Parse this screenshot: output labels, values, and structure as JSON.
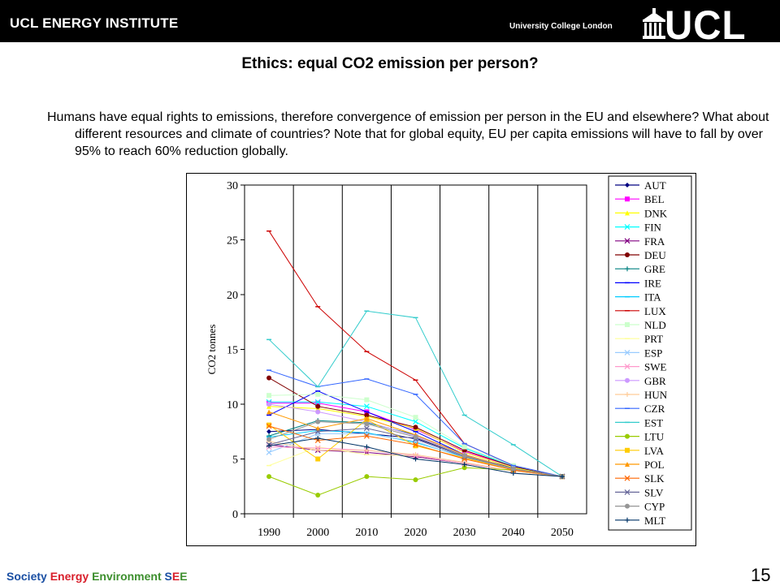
{
  "header": {
    "institute": "UCL ENERGY INSTITUTE",
    "university": "University College London",
    "logo_text": "UCL"
  },
  "slide": {
    "title": "Ethics: equal CO2 emission per person?",
    "body": "Humans have equal rights to emissions, therefore convergence of emission per person in the EU and elsewhere? What about different resources and climate of countries? Note that for global equity, EU per capita emissions will have to fall by over 95% to reach 60% reduction globally.",
    "page_number": "15"
  },
  "footer": {
    "society": "Society",
    "energy": "Energy",
    "environment": "Environment",
    "see_s": "S",
    "see_e1": "E",
    "see_e2": "E"
  },
  "chart_data": {
    "type": "line",
    "title": "",
    "xlabel": "",
    "ylabel": "CO2 tonnes",
    "x": [
      "1990",
      "2000",
      "2010",
      "2020",
      "2030",
      "2040",
      "2050"
    ],
    "ylim": [
      0,
      30
    ],
    "yticks": [
      0,
      5,
      10,
      15,
      20,
      25,
      30
    ],
    "grid": "vertical",
    "legend_position": "right",
    "series": [
      {
        "name": "AUT",
        "color": "#000080",
        "marker": "diamond",
        "values": [
          7.5,
          7.7,
          7.3,
          6.9,
          5.3,
          4.2,
          3.4
        ]
      },
      {
        "name": "BEL",
        "color": "#ff00ff",
        "marker": "square",
        "values": [
          10.1,
          10.1,
          9.3,
          7.7,
          5.7,
          4.3,
          3.4
        ]
      },
      {
        "name": "DNK",
        "color": "#ffff00",
        "marker": "triangle",
        "values": [
          9.8,
          9.6,
          8.9,
          7.8,
          5.6,
          4.2,
          3.4
        ]
      },
      {
        "name": "FIN",
        "color": "#00ffff",
        "marker": "x",
        "values": [
          10.2,
          10.2,
          9.8,
          8.4,
          6.0,
          4.3,
          3.4
        ]
      },
      {
        "name": "FRA",
        "color": "#800080",
        "marker": "x",
        "values": [
          6.3,
          5.8,
          5.6,
          5.2,
          4.6,
          3.9,
          3.4
        ]
      },
      {
        "name": "DEU",
        "color": "#800000",
        "marker": "circle",
        "values": [
          12.4,
          9.8,
          9.0,
          7.9,
          5.8,
          4.3,
          3.4
        ]
      },
      {
        "name": "GRE",
        "color": "#008080",
        "marker": "plus",
        "values": [
          7.1,
          8.5,
          8.3,
          7.2,
          5.4,
          4.1,
          3.4
        ]
      },
      {
        "name": "IRE",
        "color": "#0000ff",
        "marker": "dash",
        "values": [
          9.0,
          11.2,
          9.3,
          7.5,
          5.4,
          4.1,
          3.4
        ]
      },
      {
        "name": "ITA",
        "color": "#00ccff",
        "marker": "dash",
        "values": [
          7.0,
          7.6,
          7.4,
          6.5,
          5.2,
          4.1,
          3.4
        ]
      },
      {
        "name": "LUX",
        "color": "#cc0000",
        "marker": "dash",
        "values": [
          25.8,
          18.9,
          14.8,
          12.2,
          6.4,
          4.4,
          3.4
        ]
      },
      {
        "name": "NLD",
        "color": "#ccffcc",
        "marker": "square",
        "values": [
          10.8,
          10.9,
          10.4,
          8.8,
          6.1,
          4.4,
          3.4
        ]
      },
      {
        "name": "PRT",
        "color": "#ffff99",
        "marker": "dash",
        "values": [
          4.4,
          6.1,
          5.4,
          5.3,
          4.6,
          3.9,
          3.4
        ]
      },
      {
        "name": "ESP",
        "color": "#99ccff",
        "marker": "x",
        "values": [
          5.6,
          7.3,
          7.3,
          6.6,
          5.1,
          4.0,
          3.4
        ]
      },
      {
        "name": "SWE",
        "color": "#ff99cc",
        "marker": "x",
        "values": [
          6.1,
          6.0,
          5.8,
          5.3,
          4.6,
          3.9,
          3.4
        ]
      },
      {
        "name": "GBR",
        "color": "#cc99ff",
        "marker": "circle",
        "values": [
          10.0,
          9.3,
          8.4,
          7.1,
          5.4,
          4.1,
          3.4
        ]
      },
      {
        "name": "HUN",
        "color": "#ffcc99",
        "marker": "plus",
        "values": [
          6.6,
          5.8,
          5.8,
          5.4,
          4.7,
          3.9,
          3.4
        ]
      },
      {
        "name": "CZR",
        "color": "#3366ff",
        "marker": "dash",
        "values": [
          13.1,
          11.6,
          12.3,
          10.9,
          6.4,
          4.4,
          3.4
        ]
      },
      {
        "name": "EST",
        "color": "#33cccc",
        "marker": "dash",
        "values": [
          15.9,
          11.6,
          18.5,
          17.9,
          9.0,
          6.3,
          3.4
        ]
      },
      {
        "name": "LTU",
        "color": "#99cc00",
        "marker": "circle",
        "values": [
          3.4,
          1.7,
          3.4,
          3.1,
          4.2,
          4.0,
          3.4
        ]
      },
      {
        "name": "LVA",
        "color": "#ffcc00",
        "marker": "square",
        "values": [
          8.1,
          5.0,
          8.6,
          6.2,
          5.1,
          4.0,
          3.4
        ]
      },
      {
        "name": "POL",
        "color": "#ff9900",
        "marker": "triangle",
        "values": [
          9.3,
          7.8,
          8.7,
          7.2,
          5.4,
          4.1,
          3.4
        ]
      },
      {
        "name": "SLK",
        "color": "#ff6600",
        "marker": "x",
        "values": [
          8.0,
          6.7,
          7.1,
          6.3,
          5.0,
          4.0,
          3.4
        ]
      },
      {
        "name": "SLV",
        "color": "#666699",
        "marker": "x",
        "values": [
          6.3,
          7.5,
          7.8,
          6.8,
          5.2,
          4.1,
          3.4
        ]
      },
      {
        "name": "CYP",
        "color": "#969696",
        "marker": "circle",
        "values": [
          6.8,
          8.4,
          8.2,
          7.0,
          5.3,
          4.1,
          3.4
        ]
      },
      {
        "name": "MLT",
        "color": "#003366",
        "marker": "plus",
        "values": [
          6.2,
          6.9,
          6.1,
          5.0,
          4.5,
          3.7,
          3.4
        ]
      }
    ]
  }
}
